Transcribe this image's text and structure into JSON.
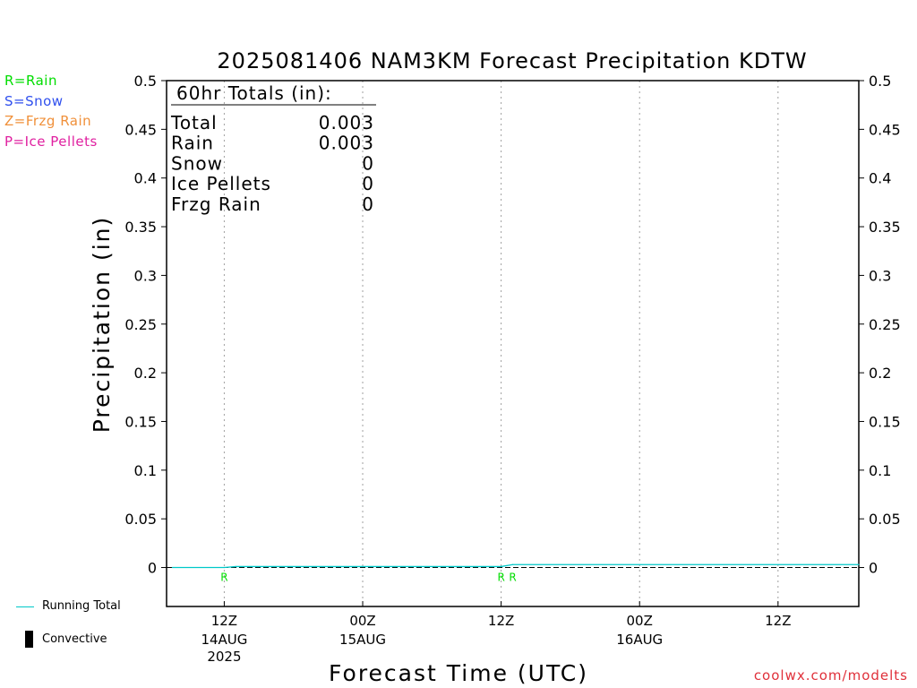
{
  "chart_data": {
    "type": "line",
    "title": "2025081406 NAM3KM Forecast Precipitation KDTW",
    "xlabel": "Forecast Time (UTC)",
    "ylabel": "Precipitation (in)",
    "ylim": [
      -0.04,
      0.5
    ],
    "y_ticks": [
      "0",
      "0.05",
      "0.1",
      "0.15",
      "0.2",
      "0.25",
      "0.3",
      "0.35",
      "0.4",
      "0.45",
      "0.5"
    ],
    "x_unit": "forecast hour",
    "xlim": [
      0,
      60
    ],
    "x_ticks": [
      {
        "hour": 5,
        "time": "12Z",
        "date": "14AUG",
        "year": "2025"
      },
      {
        "hour": 17,
        "time": "00Z",
        "date": "15AUG",
        "year": ""
      },
      {
        "hour": 29,
        "time": "12Z",
        "date": "",
        "year": ""
      },
      {
        "hour": 41,
        "time": "00Z",
        "date": "16AUG",
        "year": ""
      },
      {
        "hour": 53,
        "time": "12Z",
        "date": "",
        "year": ""
      }
    ],
    "grid": "vertical dotted at tick marks",
    "series": [
      {
        "name": "Running Total",
        "color": "#00c8c8",
        "x": [
          0.5,
          5,
          6,
          29,
          30,
          60
        ],
        "y": [
          0,
          0,
          0.001,
          0.001,
          0.003,
          0.003
        ]
      }
    ],
    "precip_type_markers": [
      {
        "hour": 5,
        "label": "R"
      },
      {
        "hour": 29,
        "label": "R"
      },
      {
        "hour": 30,
        "label": "R"
      }
    ],
    "totals_box": {
      "title": "60hr Totals (in):",
      "rows": [
        {
          "label": "Total",
          "value": "0.003"
        },
        {
          "label": "Rain",
          "value": "0.003"
        },
        {
          "label": "Snow",
          "value": "0"
        },
        {
          "label": "Ice Pellets",
          "value": "0"
        },
        {
          "label": "Frzg Rain",
          "value": "0"
        }
      ]
    }
  },
  "legend": {
    "types": [
      {
        "text": "R=Rain",
        "color": "#00dd00"
      },
      {
        "text": "S=Snow",
        "color": "#3050ee"
      },
      {
        "text": "Z=Frzg Rain",
        "color": "#f0903a"
      },
      {
        "text": "P=Ice Pellets",
        "color": "#e020a0"
      }
    ],
    "running_total_label": "Running Total",
    "convective_label": "Convective"
  },
  "credit": "coolwx.com/modelts"
}
